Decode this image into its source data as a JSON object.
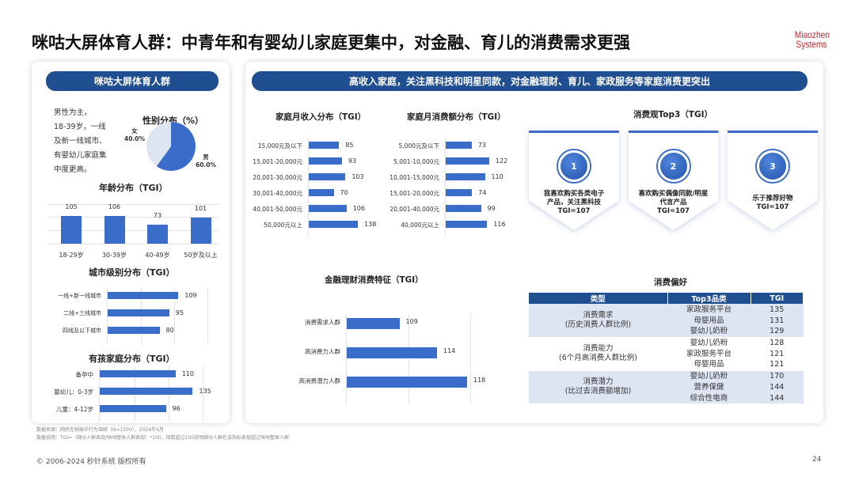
{
  "title": "咪咕大屏体育人群：中青年和有婴幼儿家庭更集中，对金融、育儿的消费需求更强",
  "logo": [
    "Miaozhen",
    "Systems"
  ],
  "colors": {
    "accent": "#1f4e91",
    "bar": "#3a6cc9",
    "pie_male": "#3a6cc9",
    "pie_female": "#dde4f2",
    "logo": "#c0272d"
  },
  "left": {
    "header": "咪咕大屏体育人群",
    "summary": [
      "男性为主，",
      "18-39岁，一线",
      "及新一线城市、",
      "有婴幼儿家庭集",
      "中度更高。"
    ],
    "gender": {
      "title": "性别分布（%）",
      "slices": [
        {
          "label": "男",
          "value": 60.0,
          "text": "60.0%"
        },
        {
          "label": "女",
          "value": 40.0,
          "text": "40.0%"
        }
      ]
    },
    "age": {
      "title": "年龄分布（TGI）",
      "categories": [
        "18-29岁",
        "30-39岁",
        "40-49岁",
        "50岁及以上"
      ],
      "values": [
        105,
        106,
        73,
        101
      ]
    },
    "city": {
      "title": "城市级别分布（TGI）",
      "categories": [
        "一线+新一线城市",
        "二线+三线城市",
        "四线及以下城市"
      ],
      "values": [
        109,
        95,
        80
      ]
    },
    "kids": {
      "title": "有孩家庭分布（TGI）",
      "categories": [
        "备孕中",
        "婴幼儿：0-3岁",
        "儿童：4-12岁"
      ],
      "values": [
        110,
        135,
        96
      ]
    }
  },
  "right": {
    "header": "高收入家庭，关注黑科技和明星同款，对金融理财、育儿、家政服务等家庭消费更突出",
    "income": {
      "title": "家庭月收入分布（TGI）",
      "categories": [
        "15,000元及以下",
        "15,001-20,000元",
        "20,001-30,000元",
        "30,001-40,000元",
        "40,001-50,000元",
        "50,000元以上"
      ],
      "values": [
        85,
        93,
        103,
        70,
        106,
        138
      ]
    },
    "spend": {
      "title": "家庭月消费额分布（TGI）",
      "categories": [
        "5,000元及以下",
        "5,001-10,000元",
        "10,001-15,000元",
        "15,001-20,000元",
        "20,001-40,000元",
        "40,000元以上"
      ],
      "values": [
        73,
        122,
        110,
        74,
        99,
        116
      ]
    },
    "finance": {
      "title": "金融理财消费特征（TGI）",
      "categories": [
        "消费需求人群",
        "高消费力人群",
        "高消费潜力人群"
      ],
      "values": [
        109,
        114,
        118
      ]
    },
    "top3": {
      "title": "消费观Top3（TGI）",
      "items": [
        {
          "num": "1",
          "lines": [
            "我喜欢购买各类电子",
            "产品，关注黑科技",
            "TGI=107"
          ]
        },
        {
          "num": "2",
          "lines": [
            "喜欢购买偶像同款/明星",
            "代言产品",
            "TGI=107"
          ]
        },
        {
          "num": "3",
          "lines": [
            "乐于推荐好物",
            "TGI=107"
          ]
        }
      ]
    },
    "pref": {
      "title": "消费偏好",
      "headers": [
        "类型",
        "Top3品类",
        "TGI"
      ],
      "groups": [
        {
          "type": [
            "消费需求",
            "(历史消费人群比例)"
          ],
          "rows": [
            [
              "家政服务平台",
              "135"
            ],
            [
              "母婴用品",
              "131"
            ],
            [
              "婴幼儿奶粉",
              "129"
            ]
          ]
        },
        {
          "type": [
            "消费能力",
            "(6个月高消费人群比例)"
          ],
          "rows": [
            [
              "婴幼儿奶粉",
              "128"
            ],
            [
              "家政服务平台",
              "121"
            ],
            [
              "母婴用品",
              "121"
            ]
          ]
        },
        {
          "type": [
            "消费潜力",
            "(比过去消费额增加)"
          ],
          "rows": [
            [
              "婴幼儿奶粉",
              "170"
            ],
            [
              "营养保健",
              "144"
            ],
            [
              "综合性电商",
              "144"
            ]
          ]
        }
      ]
    }
  },
  "footnotes": [
    "数据来源：网民在线娱乐行为调研（N=1500），2024年4月",
    "数据说明：TGI=（细分人群表现/咪咕整体人群表现）*100，指数超过100说明细分人群在该指标表现超过咪咕整体人群"
  ],
  "copyright": "© 2006-2024 秒针系统 版权所有",
  "page": "24"
}
